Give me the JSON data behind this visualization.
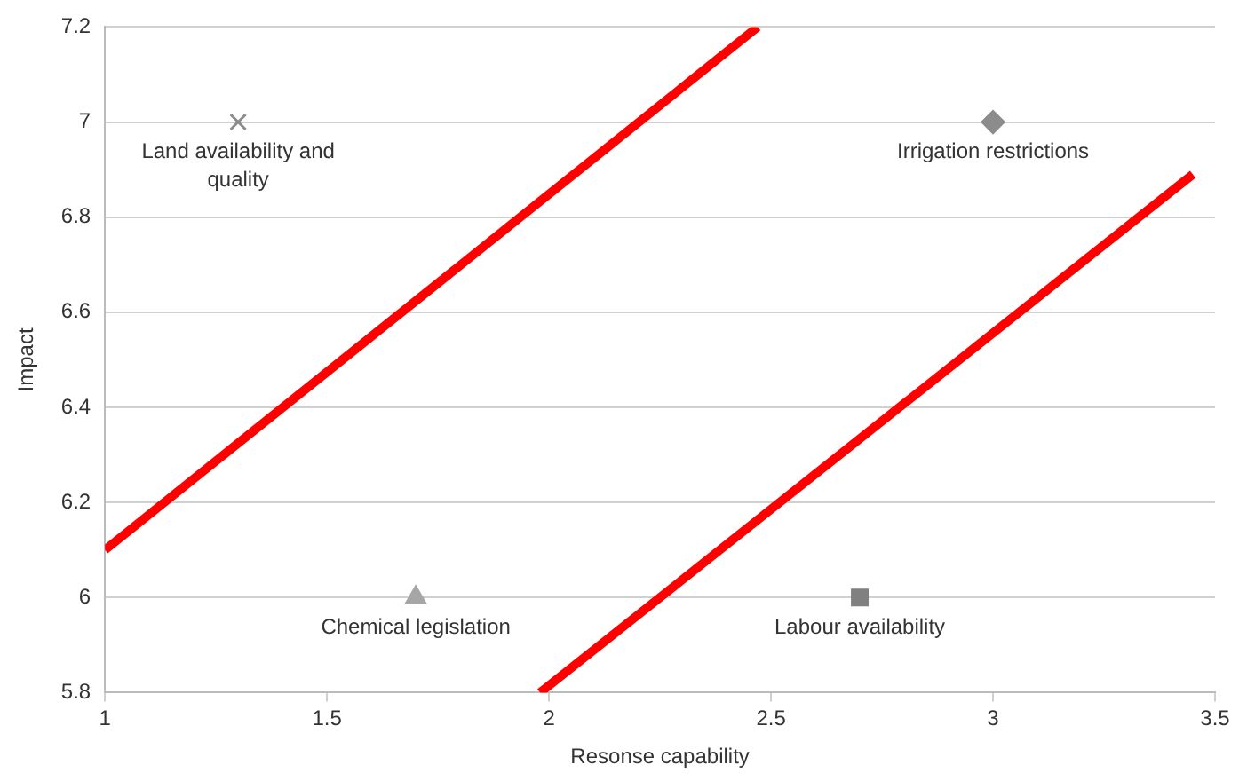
{
  "chart_data": {
    "type": "scatter",
    "xlabel": "Resonse capability",
    "ylabel": "Impact",
    "xlim": [
      1,
      3.5
    ],
    "xticks": [
      1,
      1.5,
      2,
      2.5,
      3,
      3.5
    ],
    "ylim": [
      5.8,
      7.2
    ],
    "yticks": [
      5.8,
      6,
      6.2,
      6.4,
      6.6,
      6.8,
      7,
      7.2
    ],
    "grid": "y",
    "series": [
      {
        "name": "Land availability and quality",
        "x": [
          1.3
        ],
        "values": [
          7
        ],
        "color": "#8c8c8c",
        "marker": "cross"
      },
      {
        "name": "Irrigation restrictions",
        "x": [
          3
        ],
        "values": [
          7
        ],
        "color": "#8c8c8c",
        "marker": "diamond"
      },
      {
        "name": "Chemical legislation",
        "x": [
          1.7
        ],
        "values": [
          6
        ],
        "color": "#a6a6a6",
        "marker": "triangle"
      },
      {
        "name": "Labour availability",
        "x": [
          2.7
        ],
        "values": [
          6
        ],
        "color": "#808080",
        "marker": "square"
      },
      {
        "type": "line",
        "x": [
          1,
          2.47
        ],
        "values": [
          6.1,
          7.2
        ],
        "color": "#ff0000",
        "marker": "none"
      },
      {
        "type": "line",
        "x": [
          1.98,
          3.45
        ],
        "values": [
          5.8,
          6.89
        ],
        "color": "#ff0000",
        "marker": "none"
      }
    ]
  }
}
